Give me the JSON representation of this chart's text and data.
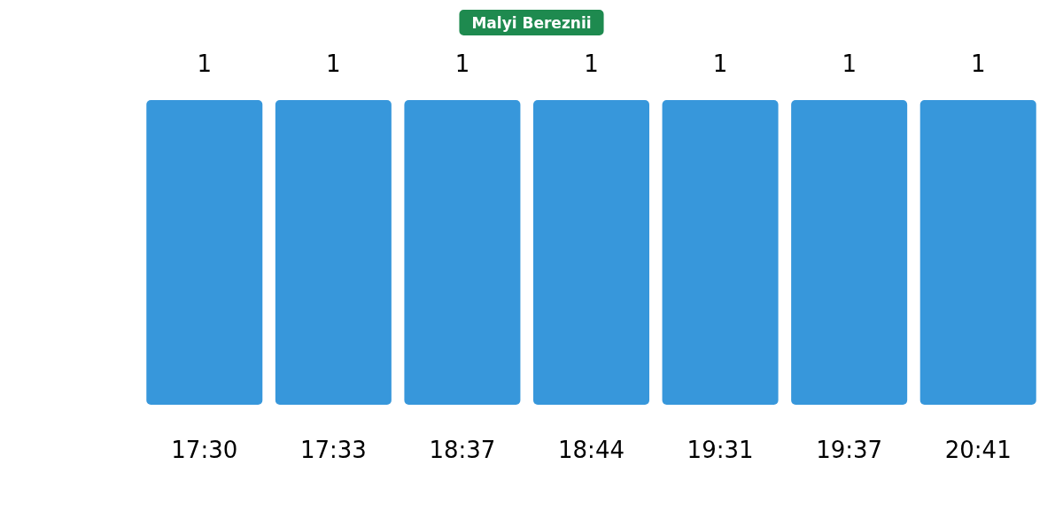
{
  "chart_data": {
    "type": "bar",
    "title": "Malyi Bereznii",
    "categories": [
      "17:30",
      "17:33",
      "18:37",
      "18:44",
      "19:31",
      "19:37",
      "20:41"
    ],
    "values": [
      1,
      1,
      1,
      1,
      1,
      1,
      1
    ],
    "color": "#3797db",
    "data_labels": true
  }
}
